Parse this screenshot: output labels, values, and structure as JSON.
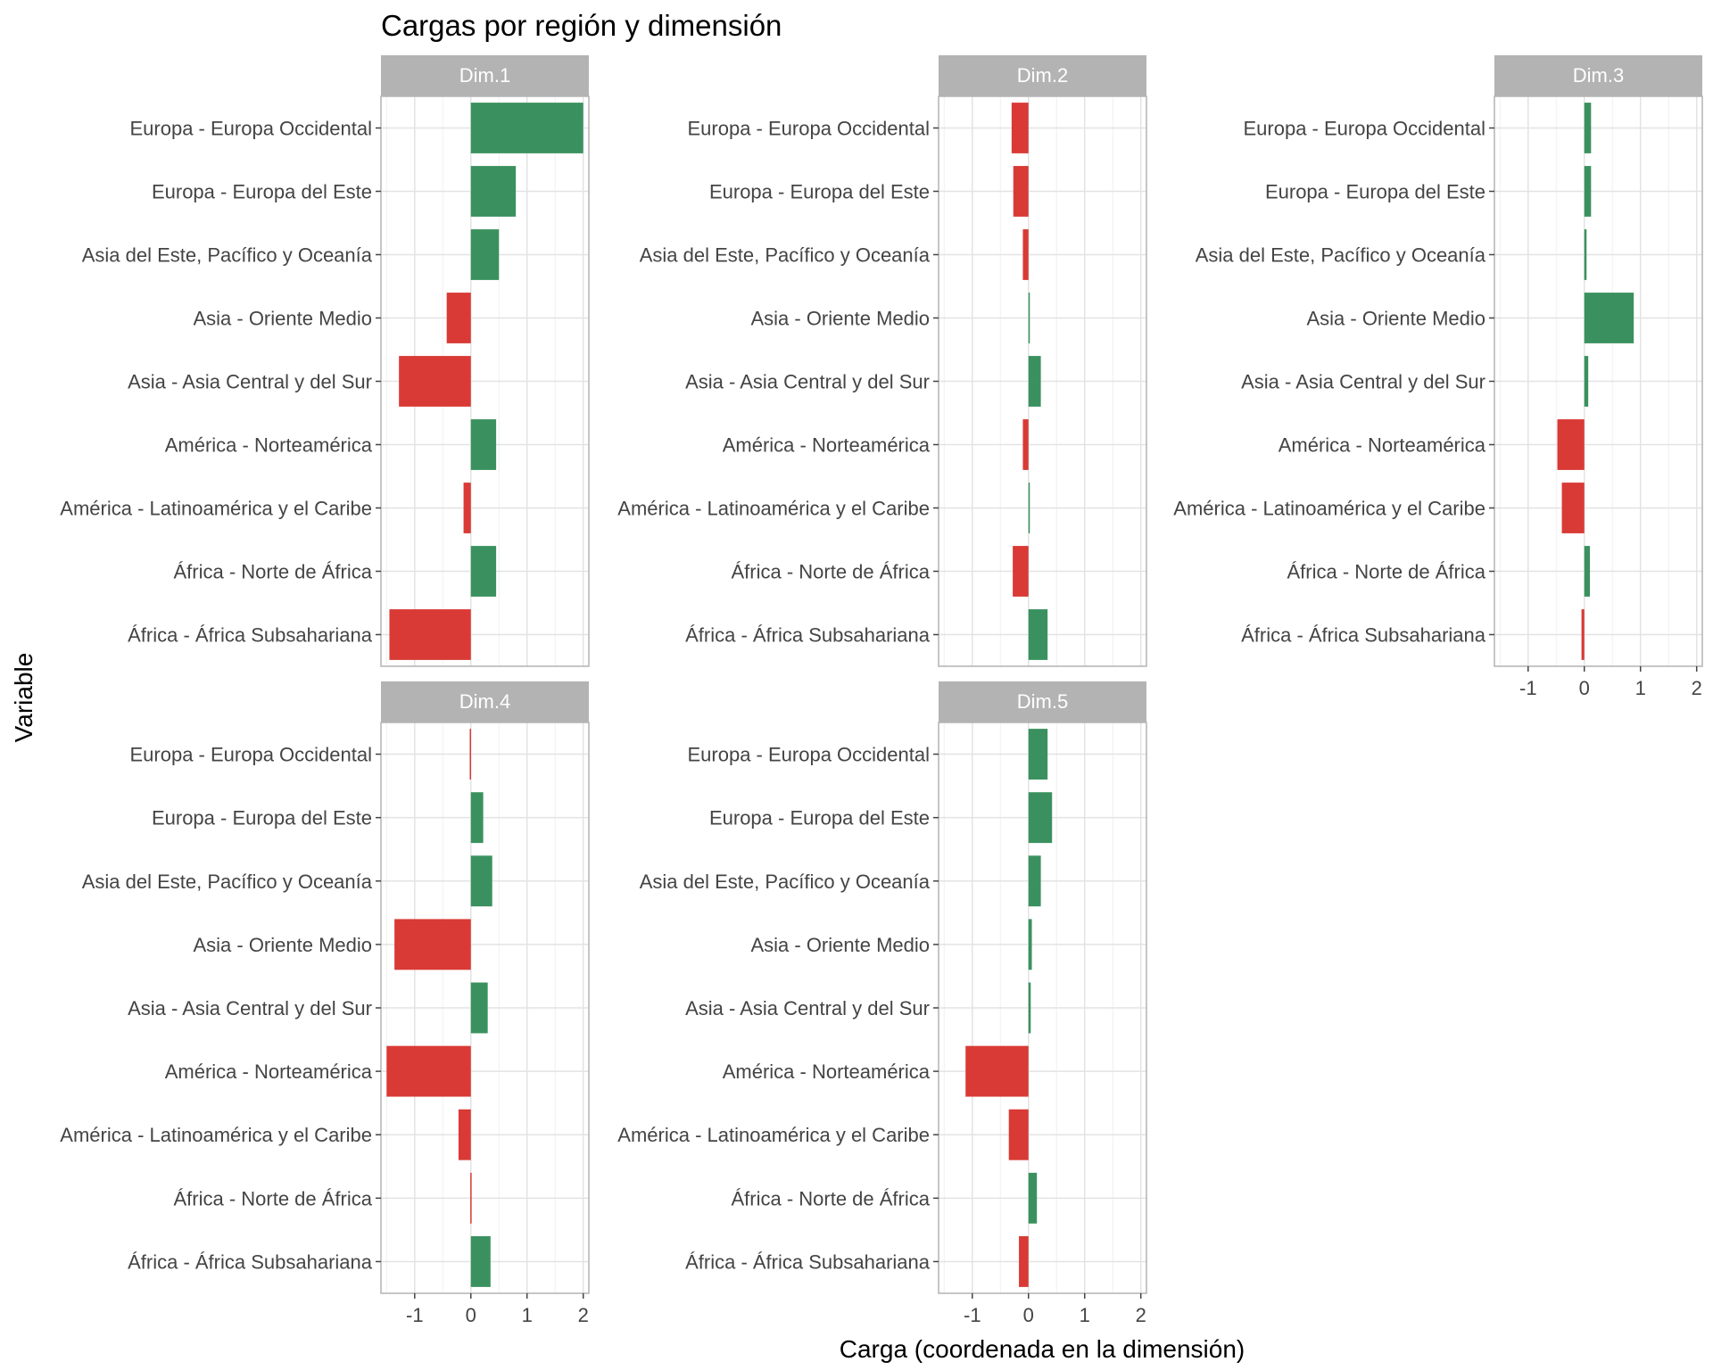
{
  "chart_data": {
    "type": "bar",
    "orientation": "horizontal",
    "title": "Cargas por región y dimensión",
    "xlabel": "Carga (coordenada en la dimensión)",
    "ylabel": "Variable",
    "xlim": [
      -1.6,
      2.1
    ],
    "xticks": [
      -1,
      0,
      1,
      2
    ],
    "xtick_labels": [
      "-1",
      "0",
      "1",
      "2"
    ],
    "grid": true,
    "facet_layout": "3 columns x 2 rows, free y labels, shared x axis",
    "colors": {
      "positive": "#3a915f",
      "negative": "#d93a35",
      "strip": "#b3b3b3"
    },
    "categories": [
      "Europa - Europa Occidental",
      "Europa - Europa del Este",
      "Asia del Este, Pacífico y Oceanía",
      "Asia - Oriente Medio",
      "Asia - Asia Central y del Sur",
      "América - Norteamérica",
      "América - Latinoamérica y el Caribe",
      "África - Norte de África",
      "África - África Subsahariana"
    ],
    "panels": [
      {
        "name": "Dim.1",
        "values": [
          2.0,
          0.8,
          0.5,
          -0.43,
          -1.28,
          0.45,
          -0.13,
          0.45,
          -1.45
        ]
      },
      {
        "name": "Dim.2",
        "values": [
          -0.3,
          -0.27,
          -0.1,
          0.0,
          0.22,
          -0.1,
          0.0,
          -0.28,
          0.34
        ]
      },
      {
        "name": "Dim.3",
        "values": [
          0.12,
          0.12,
          0.04,
          0.88,
          0.07,
          -0.48,
          -0.4,
          0.1,
          -0.05
        ]
      },
      {
        "name": "Dim.4",
        "values": [
          -0.02,
          0.22,
          0.38,
          -1.36,
          0.3,
          -1.5,
          -0.22,
          -0.01,
          0.35
        ]
      },
      {
        "name": "Dim.5",
        "values": [
          0.34,
          0.42,
          0.22,
          0.06,
          0.04,
          -1.12,
          -0.35,
          0.15,
          -0.17
        ]
      }
    ]
  }
}
